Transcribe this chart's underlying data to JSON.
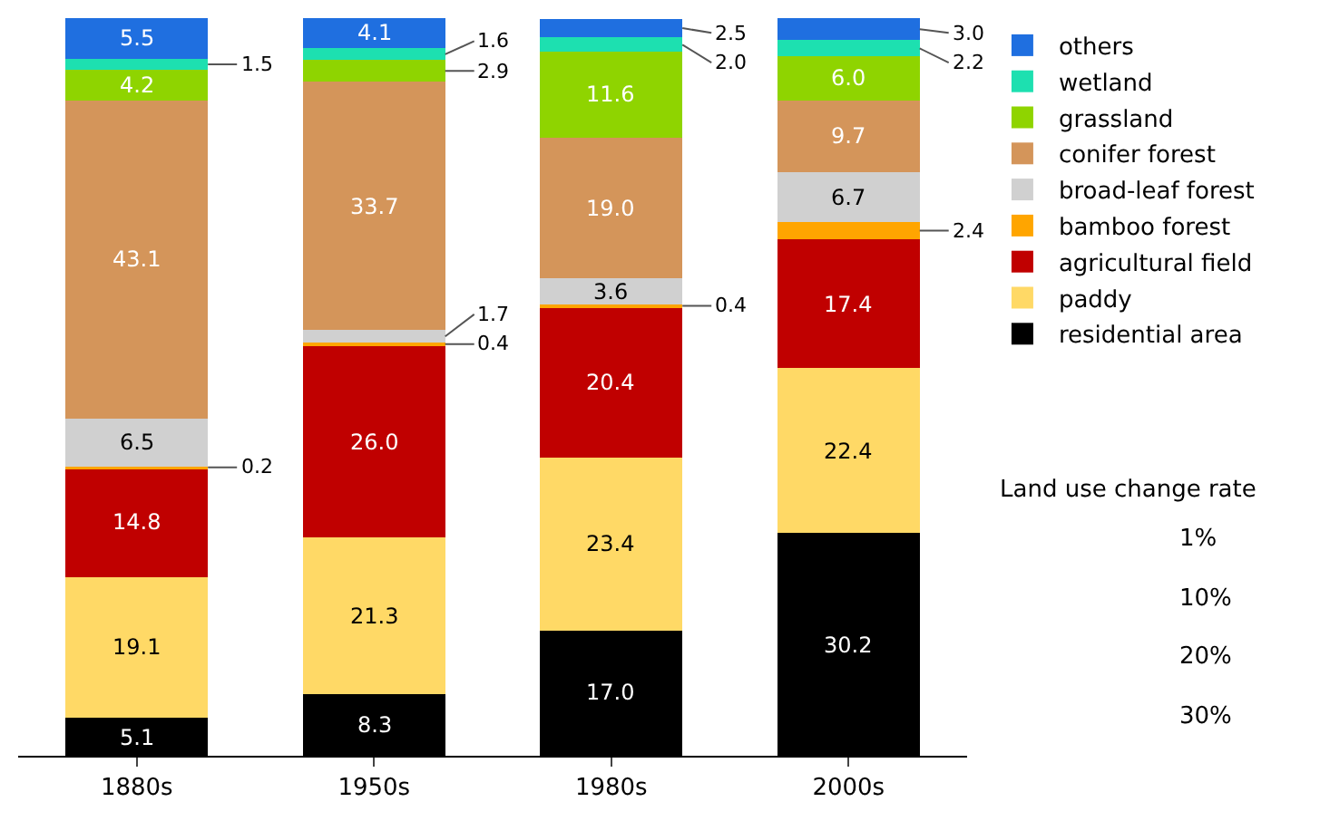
{
  "chart_data": {
    "type": "bar",
    "stacked": true,
    "categories": [
      "1880s",
      "1950s",
      "1980s",
      "2000s"
    ],
    "ylim": [
      0,
      100
    ],
    "tick_labels": "x",
    "legend": "top right",
    "series": [
      {
        "name": "residential area",
        "color": "#000000",
        "values": [
          5.1,
          8.3,
          17.0,
          30.2
        ],
        "value_labels": [
          "5.1",
          "8.3",
          "17.0",
          "30.2"
        ]
      },
      {
        "name": "paddy",
        "color": "#ffd966",
        "values": [
          19.1,
          21.3,
          23.4,
          22.4
        ],
        "value_labels": [
          "19.1",
          "21.3",
          "23.4",
          "22.4"
        ]
      },
      {
        "name": "agricultural field",
        "color": "#c00000",
        "values": [
          14.8,
          26.0,
          20.4,
          17.4
        ],
        "value_labels": [
          "14.8",
          "26.0",
          "20.4",
          "17.4"
        ]
      },
      {
        "name": "bamboo forest",
        "color": "#ffa500",
        "values": [
          0.2,
          0.4,
          0.4,
          2.4
        ],
        "value_labels": [
          "0.2",
          "0.4",
          "0.4",
          "2.4"
        ]
      },
      {
        "name": "broad-leaf forest",
        "color": "#d0d0d0",
        "values": [
          6.5,
          1.7,
          3.6,
          6.7
        ],
        "value_labels": [
          "6.5",
          "1.7",
          "3.6",
          "6.7"
        ]
      },
      {
        "name": "conifer forest",
        "color": "#d4955a",
        "values": [
          43.1,
          33.7,
          19.0,
          9.7
        ],
        "value_labels": [
          "43.1",
          "33.7",
          "19.0",
          "9.7"
        ]
      },
      {
        "name": "grassland",
        "color": "#8fd400",
        "values": [
          4.2,
          2.9,
          11.6,
          6.0
        ],
        "value_labels": [
          "4.2",
          "2.9",
          "11.6",
          "6.0"
        ]
      },
      {
        "name": "wetland",
        "color": "#1de0b0",
        "values": [
          1.5,
          1.6,
          2.0,
          2.2
        ],
        "value_labels": [
          "1.5",
          "1.6",
          "2.0",
          "2.2"
        ]
      },
      {
        "name": "others",
        "color": "#1f6fe0",
        "values": [
          5.5,
          4.1,
          2.5,
          3.0
        ],
        "value_labels": [
          "5.5",
          "4.1",
          "2.5",
          "3.0"
        ]
      }
    ],
    "annotations": [
      "Land use change rate",
      "1%",
      "10%",
      "20%",
      "30%"
    ]
  }
}
